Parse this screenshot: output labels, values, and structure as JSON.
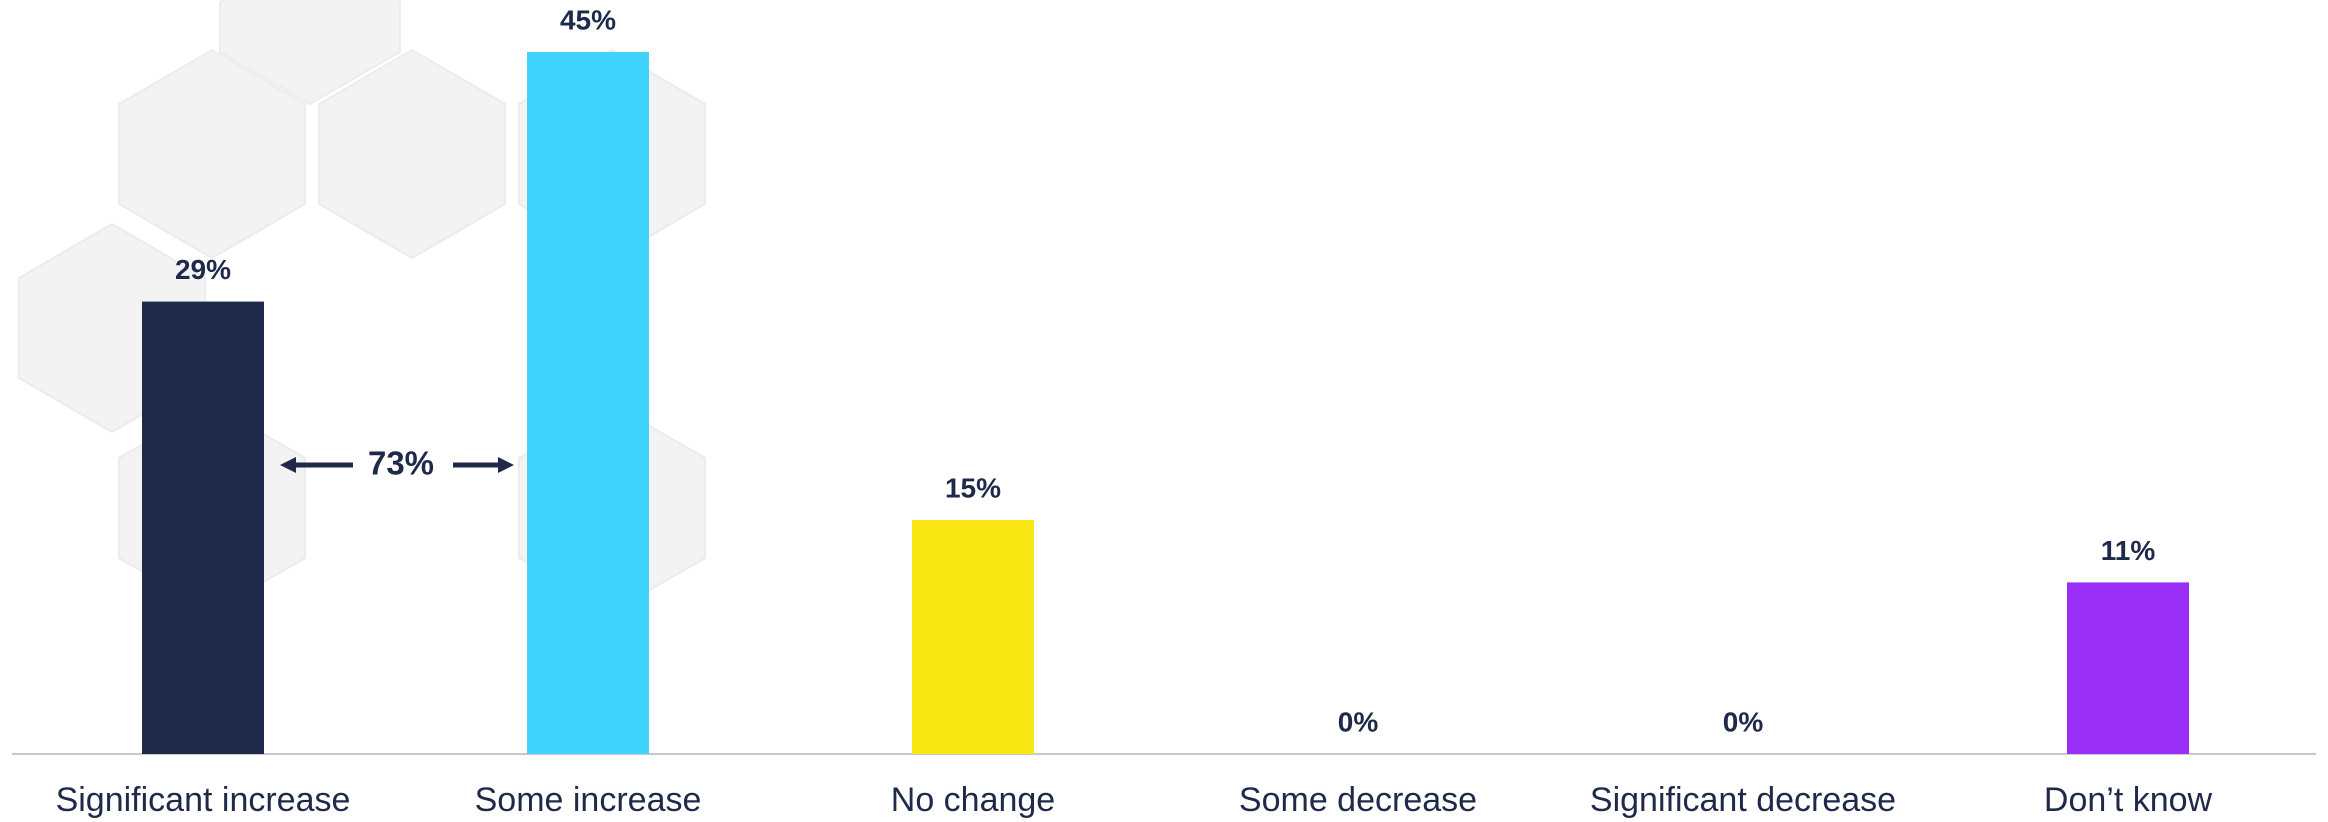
{
  "chart_data": {
    "type": "bar",
    "categories": [
      "Significant increase",
      "Some increase",
      "No change",
      "Some decrease",
      "Significant decrease",
      "Don’t know"
    ],
    "values": [
      29,
      45,
      15,
      0,
      0,
      11
    ],
    "value_labels": [
      "29%",
      "45%",
      "15%",
      "0%",
      "0%",
      "11%"
    ],
    "colors": [
      "#1f2a4a",
      "#40d3fb",
      "#f9e814",
      "#8a2be2",
      "#8a2be2",
      "#9b2ef7"
    ],
    "annotation": "73%"
  }
}
